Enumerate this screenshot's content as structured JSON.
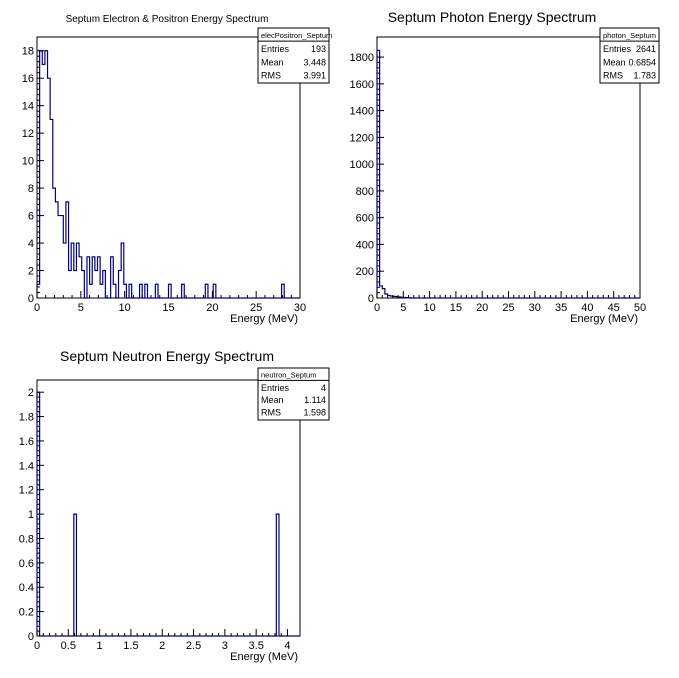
{
  "chart_data": [
    {
      "type": "bar",
      "title": "Septum Electron & Positron Energy Spectrum",
      "xlabel": "Energy (MeV)",
      "ylabel": "",
      "xlim": [
        0,
        30
      ],
      "ylim": [
        0,
        19
      ],
      "xticks": [
        "0",
        "5",
        "10",
        "15",
        "20",
        "25",
        "30"
      ],
      "yticks": [
        "0",
        "2",
        "4",
        "6",
        "8",
        "10",
        "12",
        "14",
        "16",
        "18"
      ],
      "bin_width": 0.3,
      "bins": [
        {
          "x": 0.0,
          "y": 1
        },
        {
          "x": 0.3,
          "y": 18
        },
        {
          "x": 0.6,
          "y": 17
        },
        {
          "x": 0.9,
          "y": 18
        },
        {
          "x": 1.2,
          "y": 16
        },
        {
          "x": 1.5,
          "y": 13
        },
        {
          "x": 1.8,
          "y": 8
        },
        {
          "x": 2.1,
          "y": 7
        },
        {
          "x": 2.4,
          "y": 6
        },
        {
          "x": 2.7,
          "y": 6
        },
        {
          "x": 3.0,
          "y": 4
        },
        {
          "x": 3.3,
          "y": 7
        },
        {
          "x": 3.6,
          "y": 2
        },
        {
          "x": 3.9,
          "y": 4
        },
        {
          "x": 4.2,
          "y": 2
        },
        {
          "x": 4.5,
          "y": 4
        },
        {
          "x": 4.8,
          "y": 3
        },
        {
          "x": 5.1,
          "y": 2
        },
        {
          "x": 5.7,
          "y": 3
        },
        {
          "x": 6.0,
          "y": 1
        },
        {
          "x": 6.3,
          "y": 3
        },
        {
          "x": 6.6,
          "y": 2
        },
        {
          "x": 6.9,
          "y": 3
        },
        {
          "x": 7.2,
          "y": 1
        },
        {
          "x": 7.5,
          "y": 2
        },
        {
          "x": 8.4,
          "y": 3
        },
        {
          "x": 8.7,
          "y": 1
        },
        {
          "x": 9.3,
          "y": 2
        },
        {
          "x": 9.6,
          "y": 4
        },
        {
          "x": 9.9,
          "y": 1
        },
        {
          "x": 10.5,
          "y": 1
        },
        {
          "x": 11.7,
          "y": 1
        },
        {
          "x": 12.3,
          "y": 1
        },
        {
          "x": 13.5,
          "y": 1
        },
        {
          "x": 15.0,
          "y": 1
        },
        {
          "x": 16.5,
          "y": 1
        },
        {
          "x": 19.2,
          "y": 1
        },
        {
          "x": 20.1,
          "y": 1
        },
        {
          "x": 27.9,
          "y": 1
        }
      ],
      "stats": {
        "name": "elecPositron_Septum",
        "entries": "193",
        "mean": "3.448",
        "rms": "3.991"
      }
    },
    {
      "type": "bar",
      "title": "Septum Photon Energy Spectrum",
      "xlabel": "Energy (MeV)",
      "ylabel": "",
      "xlim": [
        0,
        50
      ],
      "ylim": [
        0,
        1950
      ],
      "xticks": [
        "0",
        "5",
        "10",
        "15",
        "20",
        "25",
        "30",
        "35",
        "40",
        "45",
        "50"
      ],
      "yticks": [
        "0",
        "200",
        "400",
        "600",
        "800",
        "1000",
        "1200",
        "1400",
        "1600",
        "1800"
      ],
      "bin_width": 0.5,
      "bins": [
        {
          "x": 0.0,
          "y": 1850
        },
        {
          "x": 0.5,
          "y": 90
        },
        {
          "x": 1.0,
          "y": 70
        },
        {
          "x": 1.5,
          "y": 30
        },
        {
          "x": 2.0,
          "y": 20
        },
        {
          "x": 2.5,
          "y": 15
        },
        {
          "x": 3.0,
          "y": 12
        },
        {
          "x": 3.5,
          "y": 10
        },
        {
          "x": 4.0,
          "y": 8
        },
        {
          "x": 4.5,
          "y": 6
        },
        {
          "x": 5.0,
          "y": 4
        },
        {
          "x": 5.5,
          "y": 3
        },
        {
          "x": 6.0,
          "y": 2
        }
      ],
      "stats": {
        "name": "photon_Septum",
        "entries": "2641",
        "mean": "0.6854",
        "rms": "1.783"
      }
    },
    {
      "type": "bar",
      "title": "Septum Neutron Energy Spectrum",
      "xlabel": "Energy (MeV)",
      "ylabel": "",
      "xlim": [
        0,
        4.2
      ],
      "ylim": [
        0,
        2.1
      ],
      "xticks": [
        "0",
        "0.5",
        "1",
        "1.5",
        "2",
        "2.5",
        "3",
        "3.5",
        "4"
      ],
      "yticks": [
        "0",
        "0.2",
        "0.4",
        "0.6",
        "0.8",
        "1",
        "1.2",
        "1.4",
        "1.6",
        "1.8",
        "2"
      ],
      "bin_width": 0.042,
      "bins": [
        {
          "x": 0.0,
          "y": 2
        },
        {
          "x": 0.588,
          "y": 1
        },
        {
          "x": 3.822,
          "y": 1
        }
      ],
      "stats": {
        "name": "neutron_Septum",
        "entries": "4",
        "mean": "1.114",
        "rms": "1.598"
      }
    }
  ],
  "stat_labels": {
    "entries": "Entries",
    "mean": "Mean",
    "rms": "RMS"
  },
  "colors": {
    "line": "#000080",
    "axis": "#000000",
    "background": "#ffffff"
  }
}
